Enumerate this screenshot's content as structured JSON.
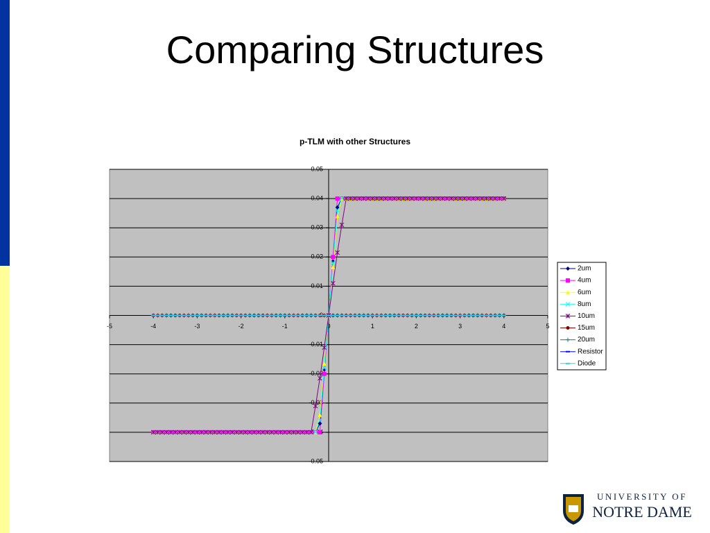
{
  "slide_title": "Comparing Structures",
  "logo": {
    "line1": "UNIVERSITY OF",
    "line2": "NOTRE DAME"
  },
  "chart_data": {
    "type": "line",
    "title": "p-TLM with other Structures",
    "x": [
      -4,
      -3.9,
      -3.8,
      -3.7,
      -3.6,
      -3.5,
      -3.4,
      -3.3,
      -3.2,
      -3.1,
      -3,
      -2.9,
      -2.8,
      -2.7,
      -2.6,
      -2.5,
      -2.4,
      -2.3,
      -2.2,
      -2.1,
      -2,
      -1.9,
      -1.8,
      -1.7,
      -1.6,
      -1.5,
      -1.4,
      -1.3,
      -1.2,
      -1.1,
      -1,
      -0.9,
      -0.8,
      -0.7,
      -0.6,
      -0.5,
      -0.4,
      -0.3,
      -0.2,
      -0.1,
      0,
      0.1,
      0.2,
      0.3,
      0.4,
      0.5,
      0.6,
      0.7,
      0.8,
      0.9,
      1,
      1.1,
      1.2,
      1.3,
      1.4,
      1.5,
      1.6,
      1.7,
      1.8,
      1.9,
      2,
      2.1,
      2.2,
      2.3,
      2.4,
      2.5,
      2.6,
      2.7,
      2.8,
      2.9,
      3,
      3.1,
      3.2,
      3.3,
      3.4,
      3.5,
      3.6,
      3.7,
      3.8,
      3.9,
      4
    ],
    "series": [
      {
        "name": "2um",
        "color": "#000080",
        "marker": "diamond",
        "values": [
          -0.04,
          -0.04,
          -0.04,
          -0.04,
          -0.04,
          -0.04,
          -0.04,
          -0.04,
          -0.04,
          -0.04,
          -0.04,
          -0.04,
          -0.04,
          -0.04,
          -0.04,
          -0.04,
          -0.04,
          -0.04,
          -0.04,
          -0.04,
          -0.04,
          -0.04,
          -0.04,
          -0.04,
          -0.04,
          -0.04,
          -0.04,
          -0.04,
          -0.04,
          -0.04,
          -0.04,
          -0.04,
          -0.04,
          -0.04,
          -0.04,
          -0.04,
          -0.04,
          -0.04,
          -0.037,
          -0.0185,
          0,
          0.0185,
          0.037,
          0.04,
          0.04,
          0.04,
          0.04,
          0.04,
          0.04,
          0.04,
          0.04,
          0.04,
          0.04,
          0.04,
          0.04,
          0.04,
          0.04,
          0.04,
          0.04,
          0.04,
          0.04,
          0.04,
          0.04,
          0.04,
          0.04,
          0.04,
          0.04,
          0.04,
          0.04,
          0.04,
          0.04,
          0.04,
          0.04,
          0.04,
          0.04,
          0.04,
          0.04,
          0.04,
          0.04,
          0.04,
          0.04
        ]
      },
      {
        "name": "4um",
        "color": "#ff00ff",
        "marker": "square",
        "values": [
          -0.04,
          -0.04,
          -0.04,
          -0.04,
          -0.04,
          -0.04,
          -0.04,
          -0.04,
          -0.04,
          -0.04,
          -0.04,
          -0.04,
          -0.04,
          -0.04,
          -0.04,
          -0.04,
          -0.04,
          -0.04,
          -0.04,
          -0.04,
          -0.04,
          -0.04,
          -0.04,
          -0.04,
          -0.04,
          -0.04,
          -0.04,
          -0.04,
          -0.04,
          -0.04,
          -0.04,
          -0.04,
          -0.04,
          -0.04,
          -0.04,
          -0.04,
          -0.04,
          -0.04,
          -0.04,
          -0.02,
          0,
          0.02,
          0.04,
          0.04,
          0.04,
          0.04,
          0.04,
          0.04,
          0.04,
          0.04,
          0.04,
          0.04,
          0.04,
          0.04,
          0.04,
          0.04,
          0.04,
          0.04,
          0.04,
          0.04,
          0.04,
          0.04,
          0.04,
          0.04,
          0.04,
          0.04,
          0.04,
          0.04,
          0.04,
          0.04,
          0.04,
          0.04,
          0.04,
          0.04,
          0.04,
          0.04,
          0.04,
          0.04,
          0.04,
          0.04,
          0.04
        ]
      },
      {
        "name": "6um",
        "color": "#ffff00",
        "marker": "triangle",
        "values": [
          -0.04,
          -0.04,
          -0.04,
          -0.04,
          -0.04,
          -0.04,
          -0.04,
          -0.04,
          -0.04,
          -0.04,
          -0.04,
          -0.04,
          -0.04,
          -0.04,
          -0.04,
          -0.04,
          -0.04,
          -0.04,
          -0.04,
          -0.04,
          -0.04,
          -0.04,
          -0.04,
          -0.04,
          -0.04,
          -0.04,
          -0.04,
          -0.04,
          -0.04,
          -0.04,
          -0.04,
          -0.04,
          -0.04,
          -0.04,
          -0.04,
          -0.04,
          -0.04,
          -0.04,
          -0.034,
          -0.0165,
          0,
          0.0165,
          0.034,
          0.04,
          0.04,
          0.04,
          0.04,
          0.04,
          0.04,
          0.04,
          0.04,
          0.04,
          0.04,
          0.04,
          0.04,
          0.04,
          0.04,
          0.04,
          0.04,
          0.04,
          0.04,
          0.04,
          0.04,
          0.04,
          0.04,
          0.04,
          0.04,
          0.04,
          0.04,
          0.04,
          0.04,
          0.04,
          0.04,
          0.04,
          0.04,
          0.04,
          0.04,
          0.04,
          0.04,
          0.04,
          0.04
        ]
      },
      {
        "name": "8um",
        "color": "#00ffff",
        "marker": "x",
        "values": [
          -0.04,
          -0.04,
          -0.04,
          -0.04,
          -0.04,
          -0.04,
          -0.04,
          -0.04,
          -0.04,
          -0.04,
          -0.04,
          -0.04,
          -0.04,
          -0.04,
          -0.04,
          -0.04,
          -0.04,
          -0.04,
          -0.04,
          -0.04,
          -0.04,
          -0.04,
          -0.04,
          -0.04,
          -0.04,
          -0.04,
          -0.04,
          -0.04,
          -0.04,
          -0.04,
          -0.04,
          -0.04,
          -0.04,
          -0.04,
          -0.04,
          -0.04,
          -0.04,
          -0.04,
          -0.036,
          -0.018,
          0,
          0.018,
          0.036,
          0.04,
          0.04,
          0.04,
          0.04,
          0.04,
          0.04,
          0.04,
          0.04,
          0.04,
          0.04,
          0.04,
          0.04,
          0.04,
          0.04,
          0.04,
          0.04,
          0.04,
          0.04,
          0.04,
          0.04,
          0.04,
          0.04,
          0.04,
          0.04,
          0.04,
          0.04,
          0.04,
          0.04,
          0.04,
          0.04,
          0.04,
          0.04,
          0.04,
          0.04,
          0.04,
          0.04,
          0.04,
          0.04
        ]
      },
      {
        "name": "10um",
        "color": "#800080",
        "marker": "star",
        "values": [
          -0.04,
          -0.04,
          -0.04,
          -0.04,
          -0.04,
          -0.04,
          -0.04,
          -0.04,
          -0.04,
          -0.04,
          -0.04,
          -0.04,
          -0.04,
          -0.04,
          -0.04,
          -0.04,
          -0.04,
          -0.04,
          -0.04,
          -0.04,
          -0.04,
          -0.04,
          -0.04,
          -0.04,
          -0.04,
          -0.04,
          -0.04,
          -0.04,
          -0.04,
          -0.04,
          -0.04,
          -0.04,
          -0.04,
          -0.04,
          -0.04,
          -0.04,
          -0.04,
          -0.031,
          -0.0215,
          -0.011,
          0,
          0.011,
          0.0215,
          0.031,
          0.04,
          0.04,
          0.04,
          0.04,
          0.04,
          0.04,
          0.04,
          0.04,
          0.04,
          0.04,
          0.04,
          0.04,
          0.04,
          0.04,
          0.04,
          0.04,
          0.04,
          0.04,
          0.04,
          0.04,
          0.04,
          0.04,
          0.04,
          0.04,
          0.04,
          0.04,
          0.04,
          0.04,
          0.04,
          0.04,
          0.04,
          0.04,
          0.04,
          0.04,
          0.04,
          0.04,
          0.04
        ]
      },
      {
        "name": "15um",
        "color": "#800000",
        "marker": "circle",
        "values": [
          0,
          0,
          0,
          0,
          0,
          0,
          0,
          0,
          0,
          0,
          0,
          0,
          0,
          0,
          0,
          0,
          0,
          0,
          0,
          0,
          0,
          0,
          0,
          0,
          0,
          0,
          0,
          0,
          0,
          0,
          0,
          0,
          0,
          0,
          0,
          0,
          0,
          0,
          0,
          0,
          0,
          0,
          0,
          0,
          0,
          0,
          0,
          0,
          0,
          0,
          0,
          0,
          0,
          0,
          0,
          0,
          0,
          0,
          0,
          0,
          0,
          0,
          0,
          0,
          0,
          0,
          0,
          0,
          0,
          0,
          0,
          0,
          0,
          0,
          0,
          0,
          0,
          0,
          0,
          0,
          0
        ]
      },
      {
        "name": "20um",
        "color": "#008080",
        "marker": "plus",
        "values": [
          0,
          0,
          0,
          0,
          0,
          0,
          0,
          0,
          0,
          0,
          0,
          0,
          0,
          0,
          0,
          0,
          0,
          0,
          0,
          0,
          0,
          0,
          0,
          0,
          0,
          0,
          0,
          0,
          0,
          0,
          0,
          0,
          0,
          0,
          0,
          0,
          0,
          0,
          0,
          0,
          0,
          0,
          0,
          0,
          0,
          0,
          0,
          0,
          0,
          0,
          0,
          0,
          0,
          0,
          0,
          0,
          0,
          0,
          0,
          0,
          0,
          0,
          0,
          0,
          0,
          0,
          0,
          0,
          0,
          0,
          0,
          0,
          0,
          0,
          0,
          0,
          0,
          0,
          0,
          0,
          0
        ]
      },
      {
        "name": "Resistor",
        "color": "#0000ff",
        "marker": "dash",
        "values": [
          0,
          0,
          0,
          0,
          0,
          0,
          0,
          0,
          0,
          0,
          0,
          0,
          0,
          0,
          0,
          0,
          0,
          0,
          0,
          0,
          0,
          0,
          0,
          0,
          0,
          0,
          0,
          0,
          0,
          0,
          0,
          0,
          0,
          0,
          0,
          0,
          0,
          0,
          0,
          0,
          0,
          0,
          0,
          0,
          0,
          0,
          0,
          0,
          0,
          0,
          0,
          0,
          0,
          0,
          0,
          0,
          0,
          0,
          0,
          0,
          0,
          0,
          0,
          0,
          0,
          0,
          0,
          0,
          0,
          0,
          0,
          0,
          0,
          0,
          0,
          0,
          0,
          0,
          0,
          0,
          0
        ]
      },
      {
        "name": "Diode",
        "color": "#33ccff",
        "marker": "dash",
        "values": [
          0,
          0,
          0,
          0,
          0,
          0,
          0,
          0,
          0,
          0,
          0,
          0,
          0,
          0,
          0,
          0,
          0,
          0,
          0,
          0,
          0,
          0,
          0,
          0,
          0,
          0,
          0,
          0,
          0,
          0,
          0,
          0,
          0,
          0,
          0,
          0,
          0,
          0,
          0,
          0,
          0,
          0,
          0,
          0,
          0,
          0,
          0,
          0,
          0,
          0,
          0,
          0,
          0,
          0,
          0,
          0,
          0,
          0,
          0,
          0,
          0,
          0,
          0,
          0,
          0,
          0,
          0,
          0,
          0,
          0,
          0,
          0,
          0,
          0,
          0,
          0,
          0,
          0,
          0,
          0,
          0
        ]
      }
    ],
    "xlim": [
      -5,
      5
    ],
    "xticks": [
      -5,
      -4,
      -3,
      -2,
      -1,
      0,
      1,
      2,
      3,
      4,
      5
    ],
    "ylim": [
      -0.05,
      0.05
    ],
    "yticks": [
      -0.05,
      -0.04,
      -0.03,
      -0.02,
      -0.01,
      0,
      0.01,
      0.02,
      0.03,
      0.04,
      0.05
    ],
    "grid": true,
    "legend": "right"
  }
}
